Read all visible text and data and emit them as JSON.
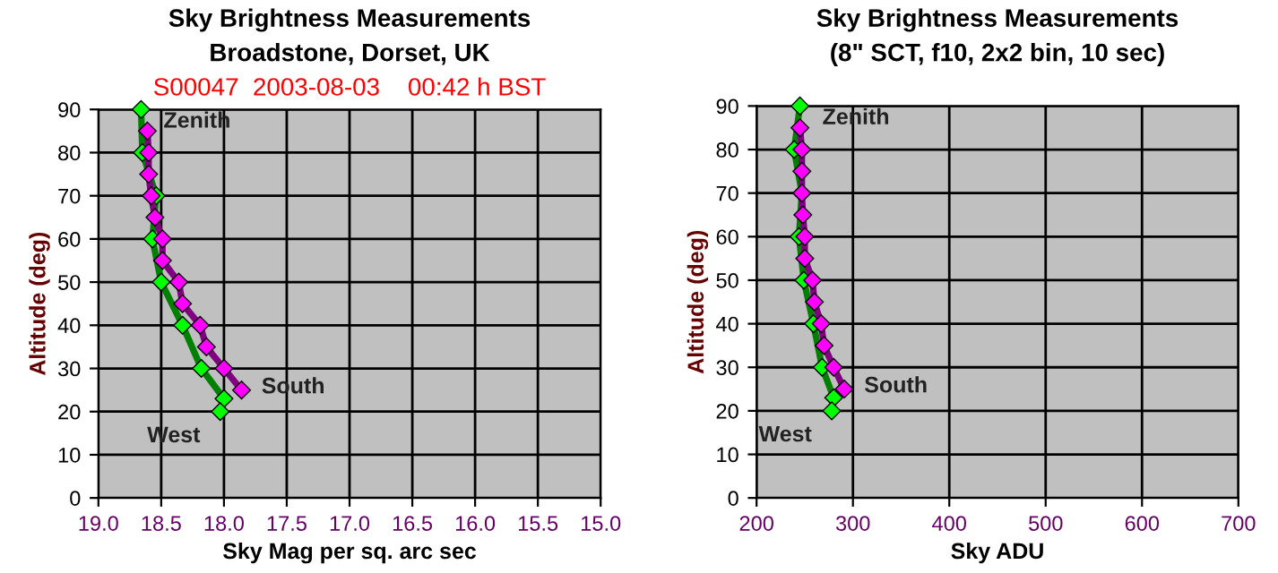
{
  "chart_data": [
    {
      "type": "line",
      "title": "Sky Brightness Measurements",
      "subtitle": "Broadstone, Dorset, UK",
      "xlabel": "Sky Mag per sq. arc sec",
      "ylabel": "Altitude (deg)",
      "annotations": [
        "S00047  2003-08-03    00:42 h BST",
        {
          "text": "Zenith",
          "x": 18.66,
          "y": 90
        }
      ],
      "xlim": [
        19.0,
        15.0
      ],
      "xticks": [
        {
          "value": 19.0,
          "label": "19.0"
        },
        {
          "value": 18.5,
          "label": "18.5"
        },
        {
          "value": 18.0,
          "label": "18.0"
        },
        {
          "value": 17.5,
          "label": "17.5"
        },
        {
          "value": 17.0,
          "label": "17.0"
        },
        {
          "value": 16.5,
          "label": "16.5"
        },
        {
          "value": 16.0,
          "label": "16.0"
        },
        {
          "value": 15.5,
          "label": "15.5"
        },
        {
          "value": 15.0,
          "label": "15.0"
        }
      ],
      "ylim": [
        0,
        90
      ],
      "yticks": [
        0,
        10,
        20,
        30,
        40,
        50,
        60,
        70,
        80,
        90
      ],
      "grid": true,
      "legend": false,
      "marker": "diamond",
      "line_style": "solid",
      "series": [
        {
          "name": "West",
          "color": "#00ff00",
          "x": [
            18.66,
            18.65,
            18.54,
            18.57,
            18.5,
            18.33,
            18.18,
            18.0,
            18.03
          ],
          "values": [
            90,
            80,
            70,
            60,
            50,
            40,
            30,
            23,
            20
          ]
        },
        {
          "name": "South",
          "color": "#ff00ff",
          "x": [
            18.61,
            18.6,
            18.6,
            18.58,
            18.55,
            18.49,
            18.49,
            18.36,
            18.33,
            18.19,
            18.14,
            18.0,
            17.86
          ],
          "values": [
            85,
            80,
            75,
            70,
            65,
            60,
            55,
            50,
            45,
            40,
            35,
            30,
            25
          ]
        }
      ]
    },
    {
      "type": "line",
      "title": "Sky Brightness Measurements",
      "subtitle": "(8\" SCT, f10, 2x2 bin, 10 sec)",
      "xlabel": "Sky ADU",
      "ylabel": "Altitude (deg)",
      "annotations": [
        {
          "text": "Zenith",
          "x": 245,
          "y": 90
        }
      ],
      "xlim": [
        200,
        700
      ],
      "xticks": [
        200,
        300,
        400,
        500,
        600,
        700
      ],
      "ylim": [
        0,
        90
      ],
      "yticks": [
        0,
        10,
        20,
        30,
        40,
        50,
        60,
        70,
        80,
        90
      ],
      "grid": true,
      "legend": false,
      "marker": "diamond",
      "line_style": "solid",
      "series": [
        {
          "name": "West",
          "color": "#00ff00",
          "x": [
            245,
            239,
            247,
            244,
            249,
            259,
            268,
            280,
            278
          ],
          "values": [
            90,
            80,
            70,
            60,
            50,
            40,
            30,
            23,
            20
          ]
        },
        {
          "name": "South",
          "color": "#ff00ff",
          "x": [
            245,
            247,
            247,
            247,
            248,
            250,
            250,
            258,
            260,
            267,
            270,
            280,
            291
          ],
          "values": [
            85,
            80,
            75,
            70,
            65,
            60,
            55,
            50,
            45,
            40,
            35,
            30,
            25
          ]
        }
      ]
    }
  ]
}
